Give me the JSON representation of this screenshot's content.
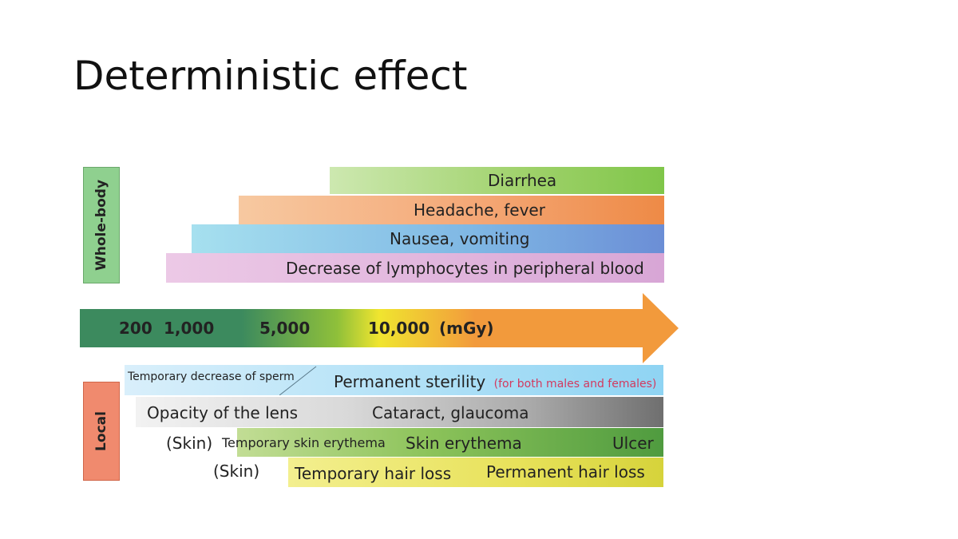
{
  "title": "Deterministic effect",
  "sections": {
    "whole_body": "Whole-body",
    "local": "Local"
  },
  "whole_body_effects": [
    "Diarrhea",
    "Headache, fever",
    "Nausea, vomiting",
    "Decrease of lymphocytes in peripheral blood"
  ],
  "dose_axis": {
    "labels": [
      "200",
      "1,000",
      "5,000",
      "10,000",
      "(mGy)"
    ],
    "colors": [
      "#3c8a5e",
      "#8fc03a",
      "#f0e52f",
      "#f29a3c"
    ]
  },
  "local_effects": {
    "sperm": {
      "early": "Temporary decrease of sperm",
      "late": "Permanent sterility",
      "note": "(for both males and females)"
    },
    "lens": {
      "early": "Opacity of the lens",
      "late": "Cataract, glaucoma"
    },
    "skin": {
      "prefix": "(Skin)",
      "early": "Temporary skin erythema",
      "mid": "Skin erythema",
      "late": "Ulcer"
    },
    "hair": {
      "prefix": "(Skin)",
      "early": "Temporary hair loss",
      "late": "Permanent hair loss"
    }
  }
}
